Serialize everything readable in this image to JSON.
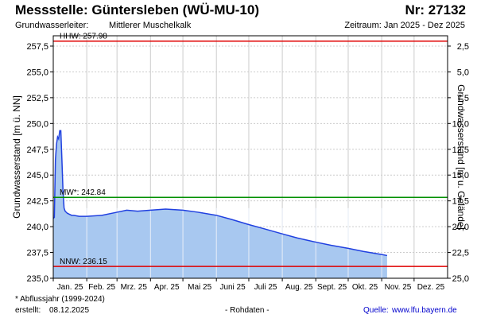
{
  "header": {
    "title": "Messstelle: Güntersleben (WÜ-MU-10)",
    "number": "Nr: 27132",
    "aquifer_label": "Grundwasserleiter:",
    "aquifer_value": "Mittlerer Muschelkalk",
    "period": "Zeitraum: Jan 2025 - Dez 2025"
  },
  "footer": {
    "note": "* Abflussjahr (1999-2024)",
    "created_label": "erstellt:",
    "created_date": "08.12.2025",
    "raw": "- Rohdaten -",
    "source_label": "Quelle:",
    "source_link": "www.lfu.bayern.de"
  },
  "colors": {
    "area_fill": "#a8c8f0",
    "line": "#2040e0",
    "hhw_line": "#e00000",
    "mw_line": "#009000",
    "nnw_line": "#e00000",
    "grid": "#cccccc"
  },
  "chart_data": {
    "type": "area",
    "ylabel": "Grundwasserstand [m ü. NN]",
    "y2label": "Grundwasserstand [m u. Gelände]",
    "ylim": [
      235.0,
      258.5
    ],
    "yticks": [
      "235,0",
      "237,5",
      "240,0",
      "242,5",
      "245,0",
      "247,5",
      "250,0",
      "252,5",
      "255,0",
      "257,5"
    ],
    "yticks_values": [
      235.0,
      237.5,
      240.0,
      242.5,
      245.0,
      247.5,
      250.0,
      252.5,
      255.0,
      257.5
    ],
    "y2_reference_level": 260.0,
    "y2ticks": [
      "2,5",
      "5,0",
      "7,5",
      "10,0",
      "12,5",
      "15,0",
      "17,5",
      "20,0",
      "22,5",
      "25,0"
    ],
    "y2ticks_depths": [
      2.5,
      5.0,
      7.5,
      10.0,
      12.5,
      15.0,
      17.5,
      20.0,
      22.5,
      25.0
    ],
    "xticks": [
      "Jan. 25",
      "Feb. 25",
      "Mrz. 25",
      "Apr. 25",
      "Mai 25",
      "Juni 25",
      "Juli 25",
      "Aug. 25",
      "Sept. 25",
      "Okt. 25",
      "Nov. 25",
      "Dez. 25"
    ],
    "grid": true,
    "reference_lines": [
      {
        "label": "HHW: 257.98",
        "value": 257.98
      },
      {
        "label": "MW*: 242.84",
        "value": 242.84
      },
      {
        "label": "NNW: 236.15",
        "value": 236.15
      }
    ],
    "series": [
      {
        "x": [
          "2025-01-01",
          "2025-01-02",
          "2025-01-03",
          "2025-01-04",
          "2025-01-05",
          "2025-01-06",
          "2025-01-07",
          "2025-01-08",
          "2025-01-09",
          "2025-01-10",
          "2025-01-11",
          "2025-01-12",
          "2025-01-14",
          "2025-01-16",
          "2025-01-18",
          "2025-01-20",
          "2025-01-25",
          "2025-02-01",
          "2025-02-15",
          "2025-03-01",
          "2025-03-10",
          "2025-03-20",
          "2025-04-01",
          "2025-04-15",
          "2025-05-01",
          "2025-05-15",
          "2025-06-01",
          "2025-06-15",
          "2025-07-01",
          "2025-07-15",
          "2025-08-01",
          "2025-08-15",
          "2025-09-01",
          "2025-09-15",
          "2025-10-01",
          "2025-10-15",
          "2025-11-01",
          "2025-11-06"
        ],
        "values": [
          240.8,
          240.9,
          246.5,
          248.0,
          248.7,
          248.5,
          249.3,
          249.3,
          246.5,
          243.5,
          241.8,
          241.5,
          241.3,
          241.2,
          241.1,
          241.1,
          241.0,
          241.0,
          241.1,
          241.4,
          241.6,
          241.5,
          241.6,
          241.7,
          241.6,
          241.4,
          241.1,
          240.7,
          240.2,
          239.8,
          239.3,
          238.9,
          238.5,
          238.2,
          237.9,
          237.6,
          237.3,
          237.2
        ]
      }
    ]
  }
}
